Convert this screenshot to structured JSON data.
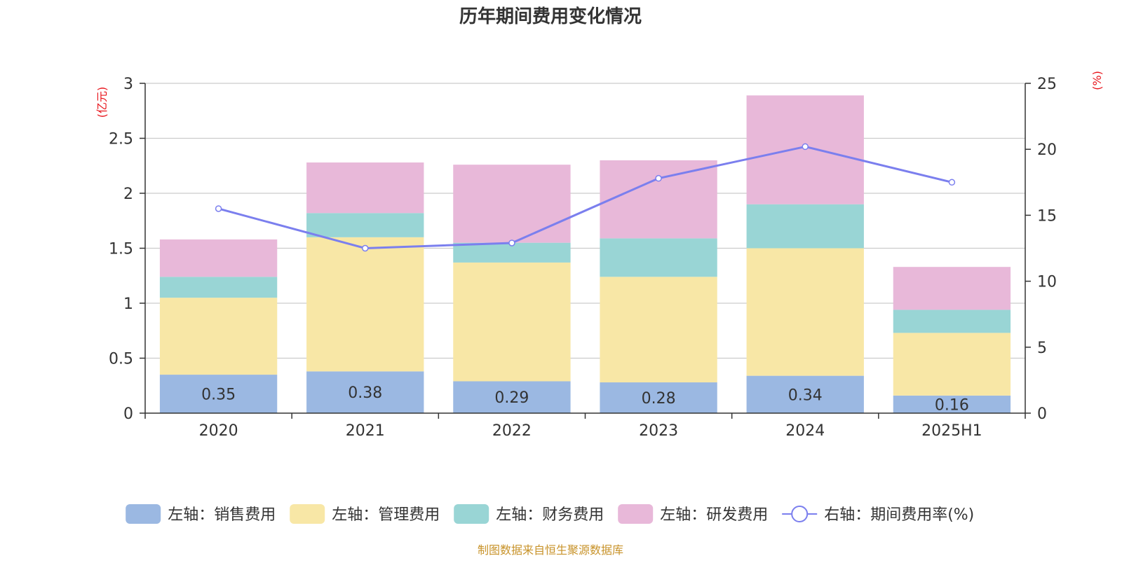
{
  "chart_data": {
    "type": "bar",
    "title": "历年期间费用变化情况",
    "stacked": true,
    "categories": [
      "2020",
      "2021",
      "2022",
      "2023",
      "2024",
      "2025H1"
    ],
    "left_axis": {
      "unit_label": "(亿元)",
      "ylim": [
        0,
        3
      ],
      "ticks": [
        "0",
        "0.5",
        "1",
        "1.5",
        "2",
        "2.5",
        "3"
      ],
      "tick_values": [
        0,
        0.5,
        1,
        1.5,
        2,
        2.5,
        3
      ]
    },
    "right_axis": {
      "unit_label": "(%)",
      "ylim": [
        0,
        25
      ],
      "ticks": [
        "0",
        "5",
        "10",
        "15",
        "20",
        "25"
      ],
      "tick_values": [
        0,
        5,
        10,
        15,
        20,
        25
      ]
    },
    "series": [
      {
        "name": "左轴：销售费用",
        "axis": "left",
        "type": "bar",
        "color": "#9bb8e2",
        "values": [
          0.35,
          0.38,
          0.29,
          0.28,
          0.34,
          0.16
        ],
        "data_labels": [
          "0.35",
          "0.38",
          "0.29",
          "0.28",
          "0.34",
          "0.16"
        ]
      },
      {
        "name": "左轴：管理费用",
        "axis": "left",
        "type": "bar",
        "color": "#f8e7a6",
        "values": [
          0.7,
          1.22,
          1.08,
          0.96,
          1.16,
          0.57
        ]
      },
      {
        "name": "左轴：财务费用",
        "axis": "left",
        "type": "bar",
        "color": "#99d5d5",
        "values": [
          0.19,
          0.22,
          0.18,
          0.35,
          0.4,
          0.21
        ]
      },
      {
        "name": "左轴：研发费用",
        "axis": "left",
        "type": "bar",
        "color": "#e8b8d9",
        "values": [
          0.34,
          0.46,
          0.71,
          0.71,
          0.99,
          0.39
        ]
      },
      {
        "name": "右轴：期间费用率(%)",
        "axis": "right",
        "type": "line",
        "color": "#7b7fee",
        "values": [
          15.5,
          12.5,
          12.9,
          17.8,
          20.2,
          17.5
        ]
      }
    ],
    "legend_position": "bottom",
    "grid": true
  },
  "source_note": "制图数据来自恒生聚源数据库",
  "colors": {
    "axis_unit": "#e8141b",
    "source_note": "#c8932a",
    "grid": "#cccccc",
    "axis": "#333333",
    "text": "#333333"
  }
}
